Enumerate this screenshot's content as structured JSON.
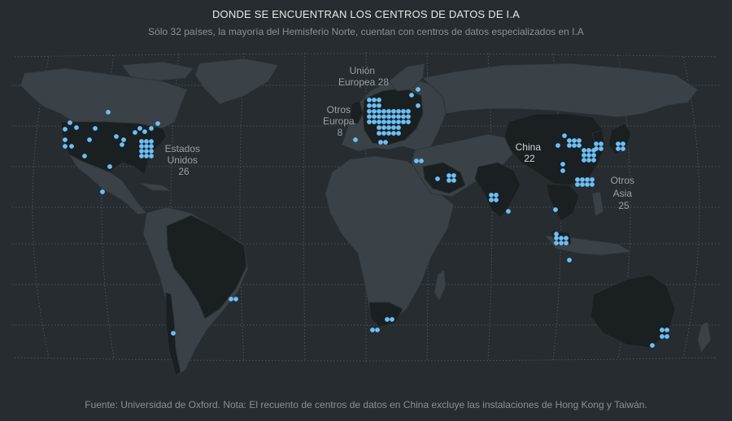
{
  "header": {
    "title": "DONDE SE ENCUENTRAN LOS CENTROS DE DATOS DE I.A",
    "subtitle": "Sólo 32 países, la mayoría del Hemisferio Norte, cuentan con centros de datos especializados en I.A"
  },
  "footer": {
    "source": "Fuente: Universidad de Oxford. Nota: El recuento de centros de datos en China excluye las instalaciones de Hong Kong y Taiwán."
  },
  "regions": {
    "usa": {
      "lines": [
        "Estados",
        "Unidos",
        "26"
      ]
    },
    "eu": {
      "lines": [
        "Unión",
        "Europea 28"
      ]
    },
    "oeu": {
      "lines": [
        "Otros",
        "Europa",
        "8"
      ]
    },
    "china": {
      "lines": [
        "China",
        "22"
      ]
    },
    "oasia": {
      "lines": [
        "Otros",
        "Asia",
        "25"
      ]
    }
  },
  "colors": {
    "background": "#262c30",
    "land": "#3a4247",
    "highlighted_country": "#1a1f22",
    "data_center_dot": "#6cc0f5",
    "graticule": "#56606a"
  },
  "map": {
    "projection": "robinson",
    "graticule": "dotted"
  }
}
